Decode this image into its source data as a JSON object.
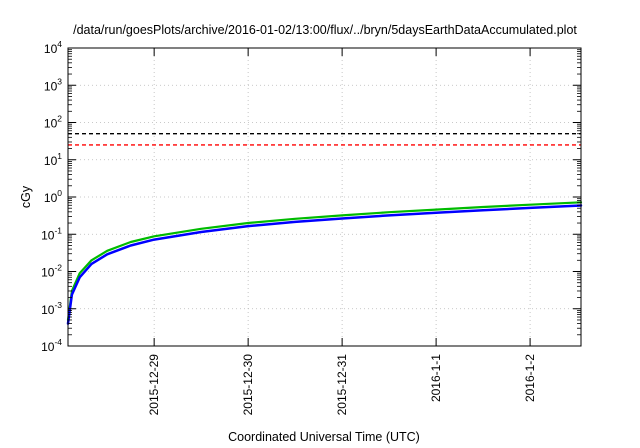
{
  "chart_data": {
    "type": "line",
    "title": "/data/run/goesPlots/archive/2016-01-02/13:00/flux/../bryn/5daysEarthDataAccumulated.plot",
    "xlabel": "Coordinated Universal Time (UTC)",
    "ylabel": "cGy",
    "yscale": "log",
    "ylim": [
      0.0001,
      10000
    ],
    "xlim": [
      "2015-12-28T02:00",
      "2016-01-02T13:00"
    ],
    "grid": true,
    "x_ticks": [
      "2015-12-29",
      "2015-12-30",
      "2015-12-31",
      "2016-1-1",
      "2016-1-2"
    ],
    "y_ticks": [
      {
        "base": "10",
        "exp": "4"
      },
      {
        "base": "10",
        "exp": "3"
      },
      {
        "base": "10",
        "exp": "2"
      },
      {
        "base": "10",
        "exp": "1"
      },
      {
        "base": "10",
        "exp": "0"
      },
      {
        "base": "10",
        "exp": "-1"
      },
      {
        "base": "10",
        "exp": "-2"
      },
      {
        "base": "10",
        "exp": "-3"
      },
      {
        "base": "10",
        "exp": "-4"
      }
    ],
    "reference_lines": [
      {
        "value": 50,
        "color": "#000000",
        "style": "dashed"
      },
      {
        "value": 25,
        "color": "#ff0000",
        "style": "dashed"
      }
    ],
    "series": [
      {
        "color": "#00bb00",
        "x": [
          "2015-12-28T02:00",
          "2015-12-28T03:00",
          "2015-12-28T05:00",
          "2015-12-28T08:00",
          "2015-12-28T12:00",
          "2015-12-28T18:00",
          "2015-12-29T00:00",
          "2015-12-29T12:00",
          "2015-12-30T00:00",
          "2015-12-30T12:00",
          "2015-12-31T00:00",
          "2015-12-31T12:00",
          "2016-01-01T00:00",
          "2016-01-01T12:00",
          "2016-01-02T00:00",
          "2016-01-02T13:00"
        ],
        "y": [
          0.0005,
          0.003,
          0.009,
          0.02,
          0.036,
          0.062,
          0.088,
          0.14,
          0.2,
          0.26,
          0.32,
          0.39,
          0.46,
          0.54,
          0.62,
          0.72
        ]
      },
      {
        "color": "#0000ff",
        "x": [
          "2015-12-28T02:00",
          "2015-12-28T03:00",
          "2015-12-28T05:00",
          "2015-12-28T08:00",
          "2015-12-28T12:00",
          "2015-12-28T18:00",
          "2015-12-29T00:00",
          "2015-12-29T12:00",
          "2015-12-30T00:00",
          "2015-12-30T12:00",
          "2015-12-31T00:00",
          "2015-12-31T12:00",
          "2016-01-01T00:00",
          "2016-01-01T12:00",
          "2016-01-02T00:00",
          "2016-01-02T13:00"
        ],
        "y": [
          0.0004,
          0.0024,
          0.007,
          0.016,
          0.029,
          0.05,
          0.072,
          0.115,
          0.165,
          0.215,
          0.265,
          0.32,
          0.38,
          0.44,
          0.51,
          0.59
        ]
      }
    ]
  }
}
